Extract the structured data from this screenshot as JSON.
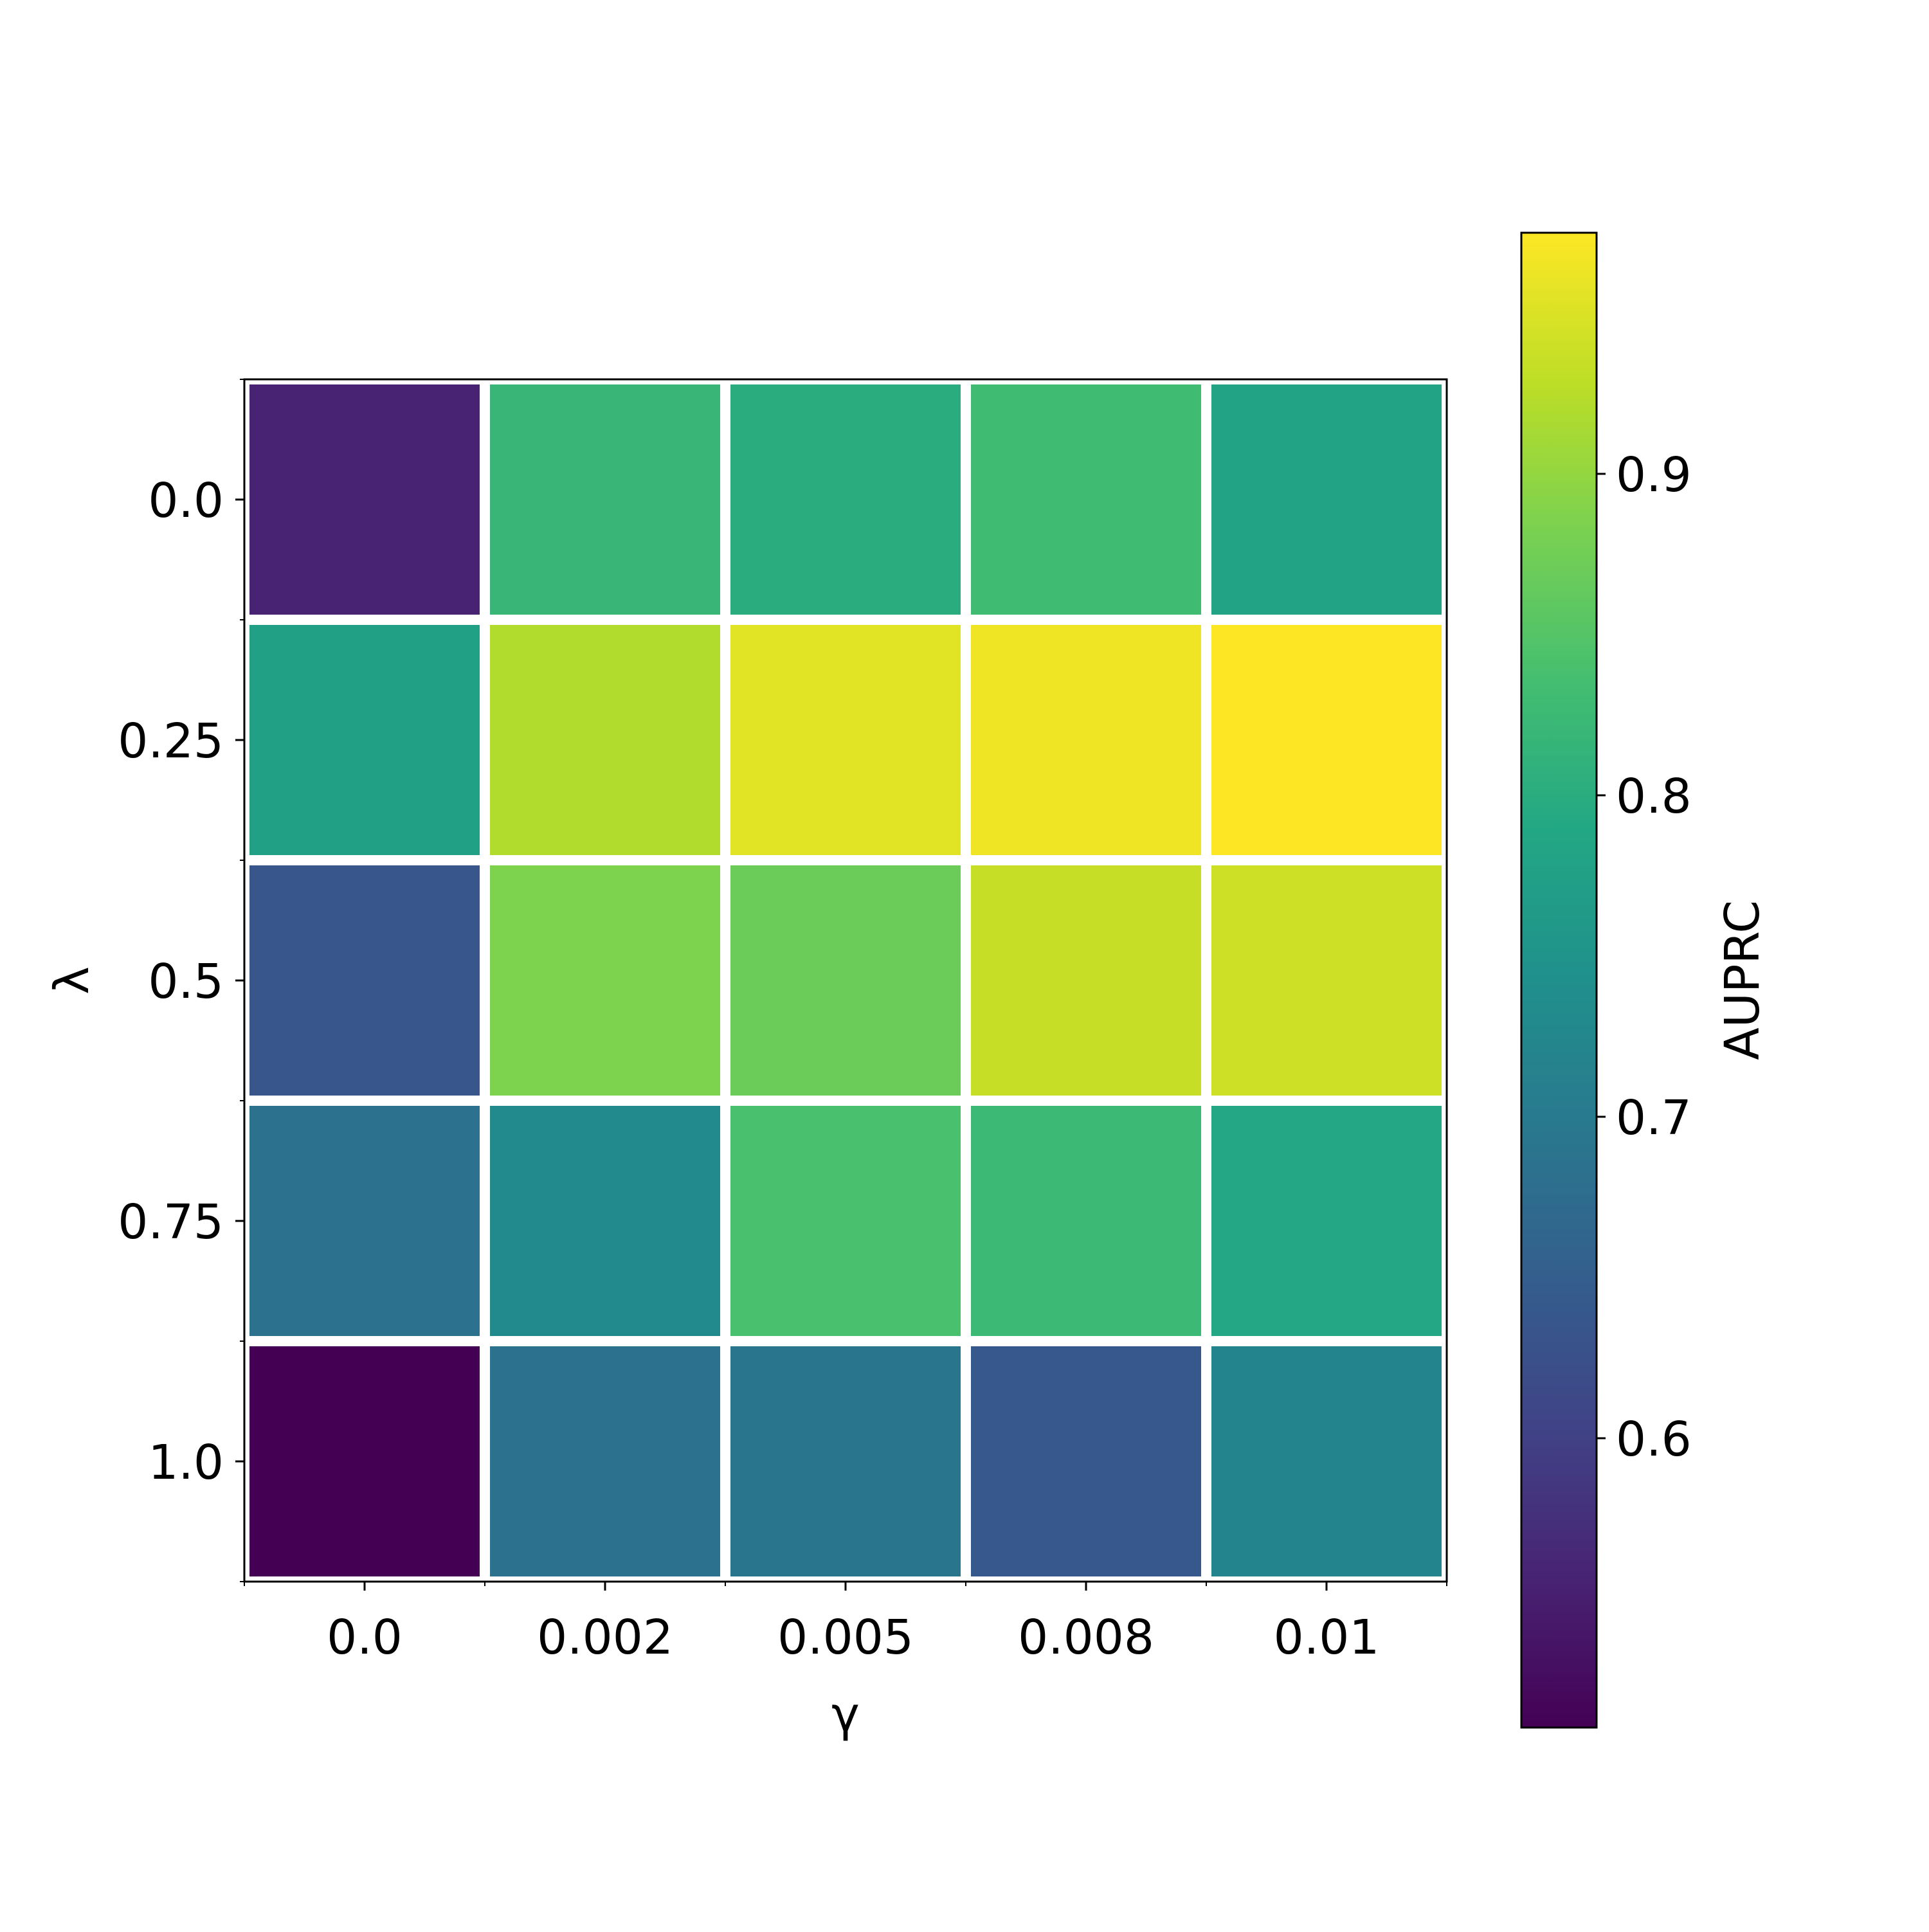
{
  "chart_data": {
    "type": "heatmap",
    "xlabel": "γ",
    "ylabel": "λ",
    "x_categories": [
      "0.0",
      "0.002",
      "0.005",
      "0.008",
      "0.01"
    ],
    "y_categories": [
      "0.0",
      "0.25",
      "0.5",
      "0.75",
      "1.0"
    ],
    "values": [
      [
        0.555,
        0.82,
        0.8,
        0.83,
        0.78
      ],
      [
        0.775,
        0.92,
        0.955,
        0.965,
        0.975
      ],
      [
        0.635,
        0.885,
        0.87,
        0.935,
        0.94
      ],
      [
        0.685,
        0.73,
        0.84,
        0.825,
        0.79
      ],
      [
        0.51,
        0.685,
        0.69,
        0.64,
        0.72
      ]
    ],
    "colormap": "viridis",
    "colorbar": {
      "label": "AUPRC",
      "range": [
        0.51,
        0.975
      ],
      "ticks": [
        0.6,
        0.7,
        0.8,
        0.9
      ],
      "tick_labels": [
        "0.6",
        "0.7",
        "0.8",
        "0.9"
      ]
    },
    "grid": false,
    "cell_separator_color": "#ffffff",
    "legend": "none"
  }
}
